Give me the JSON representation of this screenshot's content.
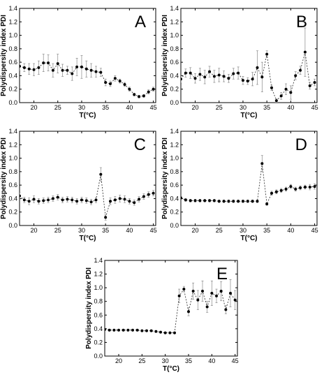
{
  "figure": {
    "ylabel": "Polydispersity index PDI",
    "xlabel": "T(°C)"
  },
  "chart_data": [
    {
      "type": "scatter",
      "panel": "A",
      "xlabel": "T(°C)",
      "ylabel": "Polydispersity index PDI",
      "xlim": [
        17,
        45.5
      ],
      "ylim": [
        0,
        1.4
      ],
      "x_ticks": [
        20,
        25,
        30,
        35,
        40,
        45
      ],
      "y_ticks": [
        0.0,
        0.2,
        0.4,
        0.6,
        0.8,
        1.0,
        1.2,
        1.4
      ],
      "series": [
        {
          "x": [
            17,
            18,
            19,
            20,
            21,
            22,
            23,
            24,
            25,
            26,
            27,
            28,
            29,
            30,
            31,
            32,
            33,
            34,
            35,
            36,
            37,
            38,
            39,
            40,
            41,
            42,
            43,
            44,
            45
          ],
          "y": [
            0.54,
            0.52,
            0.5,
            0.49,
            0.52,
            0.59,
            0.59,
            0.48,
            0.58,
            0.48,
            0.48,
            0.43,
            0.53,
            0.53,
            0.5,
            0.48,
            0.46,
            0.45,
            0.3,
            0.28,
            0.36,
            0.32,
            0.27,
            0.2,
            0.12,
            0.09,
            0.1,
            0.16,
            0.2
          ],
          "err": [
            0.07,
            0.06,
            0.08,
            0.09,
            0.1,
            0.13,
            0.12,
            0.1,
            0.14,
            0.09,
            0.06,
            0.1,
            0.13,
            0.17,
            0.12,
            0.1,
            0.08,
            0.06,
            0.05,
            0.04,
            0.04,
            0.03,
            0.03,
            0.03,
            0.02,
            0.02,
            0.02,
            0.03,
            0.03
          ]
        }
      ]
    },
    {
      "type": "scatter",
      "panel": "B",
      "xlabel": "T(°C)",
      "ylabel": "Polydispersity index PDI",
      "xlim": [
        17,
        45.5
      ],
      "ylim": [
        0,
        1.4
      ],
      "x_ticks": [
        20,
        25,
        30,
        35,
        40,
        45
      ],
      "y_ticks": [
        0.0,
        0.2,
        0.4,
        0.6,
        0.8,
        1.0,
        1.2,
        1.4
      ],
      "series": [
        {
          "x": [
            17,
            18,
            19,
            20,
            21,
            22,
            23,
            24,
            25,
            26,
            27,
            28,
            29,
            30,
            31,
            32,
            33,
            34,
            35,
            36,
            37,
            38,
            39,
            40,
            41,
            42,
            43,
            44,
            45
          ],
          "y": [
            0.35,
            0.44,
            0.44,
            0.36,
            0.42,
            0.38,
            0.46,
            0.39,
            0.41,
            0.39,
            0.36,
            0.43,
            0.44,
            0.33,
            0.32,
            0.35,
            0.52,
            0.38,
            0.72,
            0.22,
            0.03,
            0.1,
            0.2,
            0.15,
            0.4,
            0.48,
            0.75,
            0.25,
            0.3
          ],
          "err": [
            0.06,
            0.06,
            0.08,
            0.07,
            0.09,
            0.1,
            0.08,
            0.09,
            0.1,
            0.08,
            0.06,
            0.08,
            0.09,
            0.06,
            0.05,
            0.1,
            0.25,
            0.22,
            0.05,
            0.04,
            0.03,
            0.05,
            0.08,
            0.1,
            0.06,
            0.06,
            0.36,
            0.05,
            0.05
          ]
        }
      ]
    },
    {
      "type": "scatter",
      "panel": "C",
      "xlabel": "T(°C)",
      "ylabel": "Polydispersity index PDI",
      "xlim": [
        17,
        45.5
      ],
      "ylim": [
        0,
        1.4
      ],
      "x_ticks": [
        20,
        25,
        30,
        35,
        40,
        45
      ],
      "y_ticks": [
        0.0,
        0.2,
        0.4,
        0.6,
        0.8,
        1.0,
        1.2,
        1.4
      ],
      "series": [
        {
          "x": [
            17,
            18,
            19,
            20,
            21,
            22,
            23,
            24,
            25,
            26,
            27,
            28,
            29,
            30,
            31,
            32,
            33,
            34,
            35,
            36,
            37,
            38,
            39,
            40,
            41,
            42,
            43,
            44,
            45
          ],
          "y": [
            0.44,
            0.38,
            0.36,
            0.39,
            0.36,
            0.37,
            0.38,
            0.4,
            0.42,
            0.38,
            0.39,
            0.38,
            0.36,
            0.38,
            0.37,
            0.35,
            0.38,
            0.76,
            0.12,
            0.36,
            0.38,
            0.4,
            0.39,
            0.36,
            0.34,
            0.39,
            0.43,
            0.46,
            0.48
          ],
          "err": [
            0.05,
            0.04,
            0.05,
            0.05,
            0.04,
            0.04,
            0.04,
            0.04,
            0.04,
            0.04,
            0.04,
            0.04,
            0.04,
            0.04,
            0.04,
            0.04,
            0.04,
            0.1,
            0.04,
            0.05,
            0.05,
            0.05,
            0.05,
            0.04,
            0.04,
            0.04,
            0.04,
            0.04,
            0.04
          ]
        }
      ]
    },
    {
      "type": "scatter",
      "panel": "D",
      "xlabel": "T(°C)",
      "ylabel": "Polydispersity index PDI",
      "xlim": [
        17,
        45.5
      ],
      "ylim": [
        0,
        1.4
      ],
      "x_ticks": [
        20,
        25,
        30,
        35,
        40,
        45
      ],
      "y_ticks": [
        0.0,
        0.2,
        0.4,
        0.6,
        0.8,
        1.0,
        1.2,
        1.4
      ],
      "series": [
        {
          "x": [
            17,
            18,
            19,
            20,
            21,
            22,
            23,
            24,
            25,
            26,
            27,
            28,
            29,
            30,
            31,
            32,
            33,
            34,
            35,
            36,
            37,
            38,
            39,
            40,
            41,
            42,
            43,
            44,
            45
          ],
          "y": [
            0.41,
            0.38,
            0.37,
            0.37,
            0.37,
            0.37,
            0.37,
            0.37,
            0.36,
            0.36,
            0.36,
            0.36,
            0.36,
            0.36,
            0.36,
            0.36,
            0.36,
            0.92,
            0.32,
            0.48,
            0.5,
            0.52,
            0.54,
            0.58,
            0.54,
            0.56,
            0.57,
            0.57,
            0.58
          ],
          "err": [
            0.02,
            0.02,
            0.02,
            0.02,
            0.02,
            0.02,
            0.02,
            0.02,
            0.02,
            0.02,
            0.02,
            0.02,
            0.02,
            0.02,
            0.02,
            0.02,
            0.02,
            0.12,
            0.02,
            0.03,
            0.03,
            0.03,
            0.03,
            0.03,
            0.03,
            0.03,
            0.03,
            0.04,
            0.04
          ]
        }
      ]
    },
    {
      "type": "scatter",
      "panel": "E",
      "xlabel": "T(°C)",
      "ylabel": "Polydispersity index PDI",
      "xlim": [
        17,
        45.5
      ],
      "ylim": [
        0,
        1.4
      ],
      "x_ticks": [
        20,
        25,
        30,
        35,
        40,
        45
      ],
      "y_ticks": [
        0.0,
        0.2,
        0.4,
        0.6,
        0.8,
        1.0,
        1.2,
        1.4
      ],
      "series": [
        {
          "x": [
            17,
            18,
            19,
            20,
            21,
            22,
            23,
            24,
            25,
            26,
            27,
            28,
            29,
            30,
            31,
            32,
            33,
            34,
            35,
            36,
            37,
            38,
            39,
            40,
            41,
            42,
            43,
            44,
            45
          ],
          "y": [
            0.39,
            0.38,
            0.38,
            0.38,
            0.38,
            0.38,
            0.38,
            0.38,
            0.37,
            0.37,
            0.37,
            0.36,
            0.35,
            0.34,
            0.34,
            0.34,
            0.88,
            0.98,
            0.65,
            0.95,
            0.82,
            0.95,
            0.72,
            0.92,
            0.88,
            0.95,
            0.68,
            0.92,
            0.82
          ],
          "err": [
            0.01,
            0.01,
            0.01,
            0.01,
            0.01,
            0.01,
            0.01,
            0.01,
            0.01,
            0.01,
            0.01,
            0.01,
            0.01,
            0.01,
            0.01,
            0.01,
            0.1,
            0.04,
            0.06,
            0.12,
            0.14,
            0.15,
            0.08,
            0.18,
            0.1,
            0.14,
            0.06,
            0.2,
            0.14
          ]
        }
      ]
    }
  ]
}
